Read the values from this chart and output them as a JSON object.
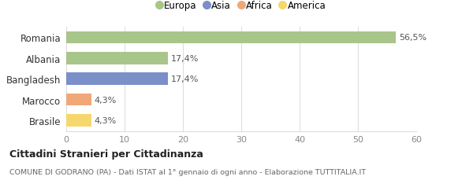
{
  "categories": [
    "Brasile",
    "Marocco",
    "Bangladesh",
    "Albania",
    "Romania"
  ],
  "values": [
    4.3,
    4.3,
    17.4,
    17.4,
    56.5
  ],
  "labels": [
    "4,3%",
    "4,3%",
    "17,4%",
    "17,4%",
    "56,5%"
  ],
  "bar_colors": [
    "#f5d76e",
    "#f0a878",
    "#7b8fc9",
    "#a8c58a",
    "#a8c58a"
  ],
  "legend_items": [
    {
      "label": "Europa",
      "color": "#a8c58a"
    },
    {
      "label": "Asia",
      "color": "#7b8fc9"
    },
    {
      "label": "Africa",
      "color": "#f0a878"
    },
    {
      "label": "America",
      "color": "#f5d76e"
    }
  ],
  "xlim": [
    0,
    60
  ],
  "xticks": [
    0,
    10,
    20,
    30,
    40,
    50,
    60
  ],
  "title_bold": "Cittadini Stranieri per Cittadinanza",
  "subtitle": "COMUNE DI GODRANO (PA) - Dati ISTAT al 1° gennaio di ogni anno - Elaborazione TUTTITALIA.IT",
  "background_color": "#ffffff",
  "grid_color": "#dddddd"
}
